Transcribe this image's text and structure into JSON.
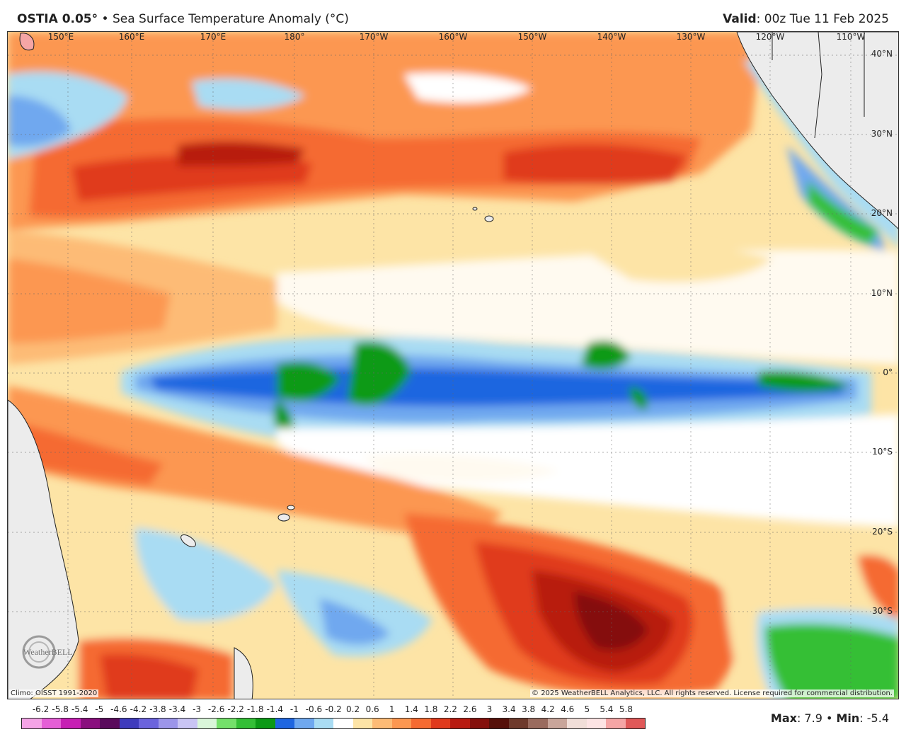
{
  "header": {
    "model": "OSTIA 0.05°",
    "separator": "•",
    "product": "Sea Surface Temperature Anomaly (°C)",
    "valid_label": "Valid",
    "valid_value": ": 00z Tue 11 Feb 2025"
  },
  "map": {
    "longitude_labels": [
      "150°E",
      "160°E",
      "170°E",
      "180°",
      "170°W",
      "160°W",
      "150°W",
      "140°W",
      "130°W",
      "120°W",
      "110°W"
    ],
    "latitude_labels": [
      "40°N",
      "30°N",
      "20°N",
      "10°N",
      "0°",
      "10°S",
      "20°S",
      "30°S"
    ],
    "climo_text": "Climo: OISST 1991-2020",
    "copyright_text": "© 2025 WeatherBELL Analytics, LLC. All rights reserved. License required for commercial distribution.",
    "logo_text": "WeatherBELL"
  },
  "legend": {
    "ticks": [
      "-6.2",
      "-5.8",
      "-5.4",
      "-5",
      "-4.6",
      "-4.2",
      "-3.8",
      "-3.4",
      "-3",
      "-2.6",
      "-2.2",
      "-1.8",
      "-1.4",
      "-1",
      "-0.6",
      "-0.2",
      "0.2",
      "0.6",
      "1",
      "1.4",
      "1.8",
      "2.2",
      "2.6",
      "3",
      "3.4",
      "3.8",
      "4.2",
      "4.6",
      "5",
      "5.4",
      "5.8"
    ],
    "colors": [
      "#f4a3e6",
      "#e55fd6",
      "#c71fb4",
      "#8a0f7e",
      "#5a0a5c",
      "#3f3bbd",
      "#6b63dd",
      "#9c95ea",
      "#c9c4f4",
      "#d9f6d9",
      "#74e06a",
      "#34bf36",
      "#0c9a16",
      "#1f66e0",
      "#6fa8ef",
      "#a9dcf3",
      "#ffffff",
      "#fde4a6",
      "#fdbb76",
      "#fc9751",
      "#f56a31",
      "#e03a1c",
      "#b81a10",
      "#85100c",
      "#561009",
      "#6e3a2c",
      "#9a6b5e",
      "#c9a59a",
      "#f1ded8",
      "#fde4e4",
      "#f5a5a5",
      "#e05858"
    ],
    "max_label": "Max",
    "max_value": ": 7.9",
    "min_label": "Min",
    "min_value": ": -5.4",
    "stats_separator": "•"
  }
}
